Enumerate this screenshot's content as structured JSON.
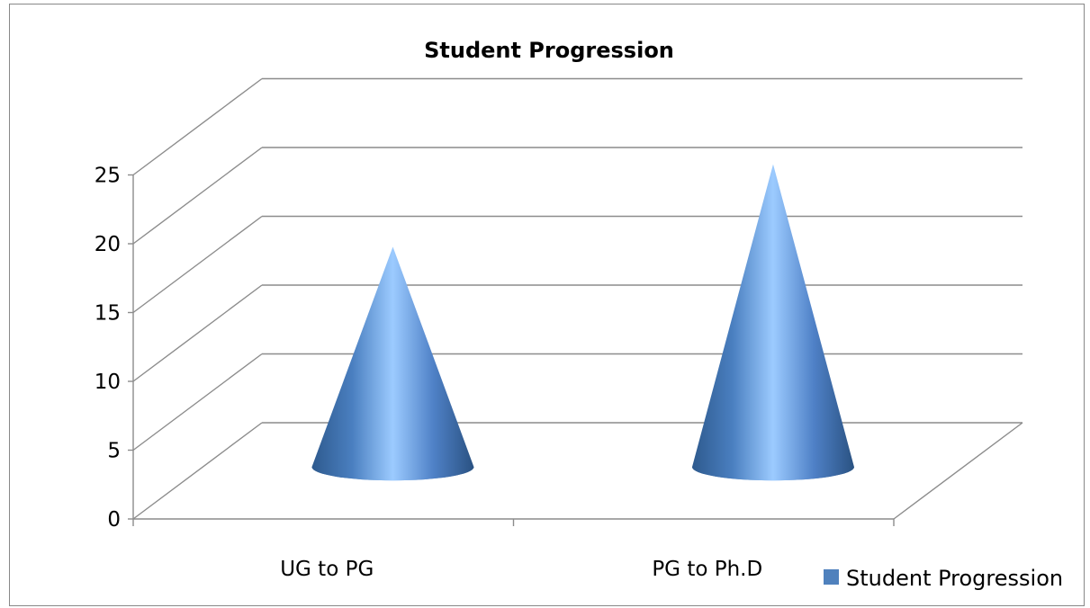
{
  "chart_data": {
    "type": "bar",
    "title": "Student Progression",
    "categories": [
      "UG to PG",
      "PG to Ph.D"
    ],
    "series": [
      {
        "name": "Student Progression",
        "values": [
          16,
          22
        ],
        "color": "#4f81bd"
      }
    ],
    "ylim": [
      0,
      25
    ],
    "yticks": [
      "0",
      "5",
      "10",
      "15",
      "20",
      "25"
    ],
    "grid": true,
    "legend": "bottom-right",
    "shape": "cone-3d"
  }
}
